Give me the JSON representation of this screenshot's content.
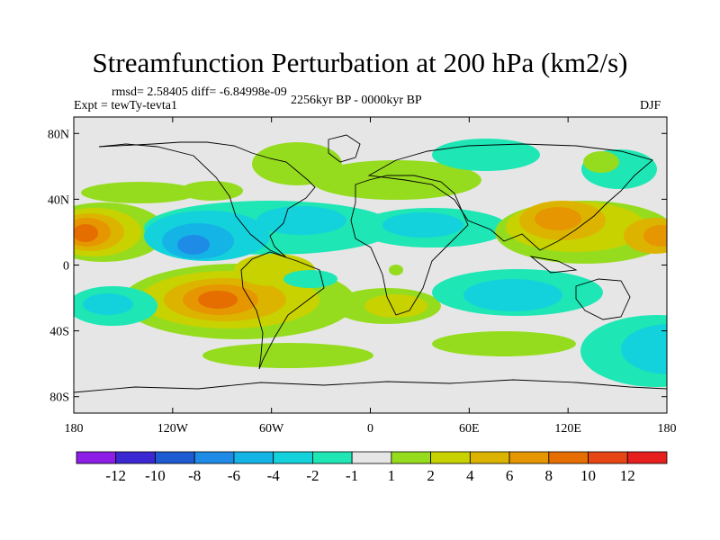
{
  "title": "Streamfunction Perturbation at 200 hPa (km2/s)",
  "stats_line": "rmsd= 2.58405 diff= -6.84998e-09",
  "expt_label": "Expt = tewTy-tevta1",
  "period_label": "2256kyr BP - 0000kyr BP",
  "season_label": "DJF",
  "chart_data": {
    "type": "heatmap",
    "title": "Streamfunction Perturbation at 200 hPa (km2/s)",
    "units": "km2/s",
    "level": "200 hPa",
    "x_range": [
      -180,
      180
    ],
    "y_range": [
      -90,
      90
    ],
    "x_ticks": [
      {
        "value": -180,
        "label": "180"
      },
      {
        "value": -120,
        "label": "120W"
      },
      {
        "value": -60,
        "label": "60W"
      },
      {
        "value": 0,
        "label": "0"
      },
      {
        "value": 60,
        "label": "60E"
      },
      {
        "value": 120,
        "label": "120E"
      },
      {
        "value": 180,
        "label": "180"
      }
    ],
    "y_ticks": [
      {
        "value": 80,
        "label": "80N"
      },
      {
        "value": 40,
        "label": "40N"
      },
      {
        "value": 0,
        "label": "0"
      },
      {
        "value": -40,
        "label": "40S"
      },
      {
        "value": -80,
        "label": "80S"
      }
    ],
    "colorbar": {
      "colors": [
        "#8c1ee6",
        "#3c28d2",
        "#1e5ad2",
        "#1e8ce6",
        "#14b4e6",
        "#14d2dc",
        "#1ee6b4",
        "#e6e6e6",
        "#96dc1e",
        "#c8d200",
        "#dcb400",
        "#e69600",
        "#e66e00",
        "#e64614",
        "#e61e1e"
      ],
      "labels": [
        "-12",
        "-10",
        "-8",
        "-6",
        "-4",
        "-2",
        "-1",
        "1",
        "2",
        "4",
        "6",
        "8",
        "10",
        "12"
      ]
    },
    "anomalies": [
      {
        "lon": -172,
        "lat": 20,
        "value": 10,
        "desc": "central Pacific high"
      },
      {
        "lon": -93,
        "lat": -23,
        "value": 9,
        "desc": "subtropical South America high"
      },
      {
        "lon": -105,
        "lat": 20,
        "value": -7,
        "desc": "tropical east Pacific low"
      },
      {
        "lon": -73,
        "lat": 30,
        "value": -4,
        "desc": "subtropical Atlantic low"
      },
      {
        "lon": 15,
        "lat": 30,
        "value": -4,
        "desc": "Mediterranean low"
      },
      {
        "lon": 85,
        "lat": -20,
        "value": -4,
        "desc": "Indian Ocean low"
      },
      {
        "lon": 150,
        "lat": -40,
        "value": -5,
        "desc": "Southern Ocean low"
      },
      {
        "lon": 115,
        "lat": 35,
        "value": 8,
        "desc": "East Asia high"
      },
      {
        "lon": 175,
        "lat": 20,
        "value": 6,
        "desc": "west Pacific high"
      },
      {
        "lon": -50,
        "lat": 70,
        "value": 2,
        "desc": "Greenland high"
      },
      {
        "lon": 0,
        "lat": 35,
        "value": 3,
        "desc": "North Africa high"
      },
      {
        "lon": 20,
        "lat": -30,
        "value": 4,
        "desc": "South Africa high"
      },
      {
        "lon": -140,
        "lat": 45,
        "value": 2,
        "desc": "North Pacific high"
      }
    ]
  }
}
